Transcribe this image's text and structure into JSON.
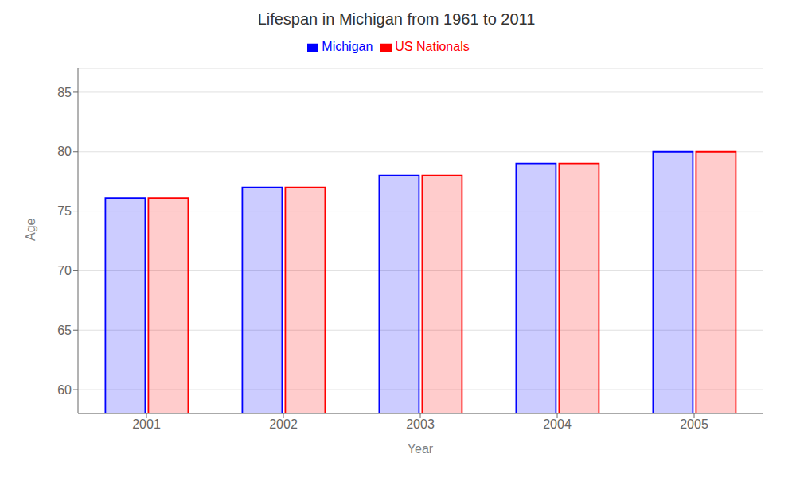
{
  "chart_data": {
    "type": "bar",
    "title": "Lifespan in Michigan from 1961 to 2011",
    "x_label": "Year",
    "y_label": "Age",
    "categories": [
      "2001",
      "2002",
      "2003",
      "2004",
      "2005"
    ],
    "series": [
      {
        "name": "Michigan",
        "color": "#0000ff",
        "values": [
          76.1,
          77.0,
          78.0,
          79.0,
          80.0
        ]
      },
      {
        "name": "US Nationals",
        "color": "#ff0000",
        "values": [
          76.1,
          77.0,
          78.0,
          79.0,
          80.0
        ]
      }
    ],
    "ylim": [
      58,
      87
    ],
    "yticks": [
      60,
      65,
      70,
      75,
      80,
      85
    ],
    "grid": true,
    "legend": "top"
  }
}
